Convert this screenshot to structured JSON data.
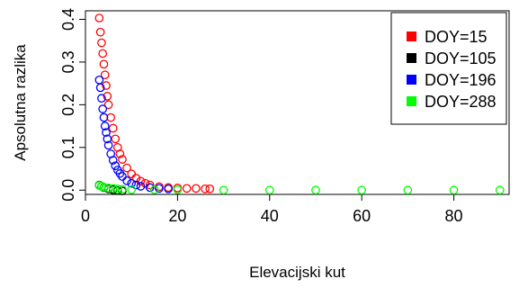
{
  "chart_data": {
    "type": "scatter",
    "title": "",
    "xlabel": "Elevacijski kut",
    "ylabel": "Apsolutna razlika",
    "xlim": [
      0,
      92
    ],
    "ylim": [
      -0.01,
      0.42
    ],
    "x_ticks": [
      0,
      20,
      40,
      60,
      80
    ],
    "x_tick_labels": [
      "0",
      "20",
      "40",
      "60",
      "80"
    ],
    "y_ticks": [
      0.0,
      0.1,
      0.2,
      0.3,
      0.4
    ],
    "y_tick_labels": [
      "0.0",
      "0.1",
      "0.2",
      "0.3",
      "0.4"
    ],
    "marker": "open-circle",
    "legend": {
      "placement": "top-right",
      "marker": "filled-square"
    },
    "series": [
      {
        "name": "DOY=15",
        "color": "#ff0000",
        "x": [
          3.0,
          3.25,
          3.5,
          3.75,
          4.0,
          4.25,
          4.5,
          4.75,
          5.0,
          5.5,
          6.0,
          6.5,
          7.0,
          7.5,
          8.0,
          9.0,
          10.0,
          11.0,
          12.0,
          13.0,
          14.0,
          16.0,
          18.0,
          20.0,
          22.0,
          24.0,
          26.0,
          27.0
        ],
        "y": [
          0.403,
          0.37,
          0.345,
          0.32,
          0.295,
          0.27,
          0.245,
          0.22,
          0.2,
          0.17,
          0.145,
          0.12,
          0.1,
          0.085,
          0.072,
          0.052,
          0.038,
          0.028,
          0.021,
          0.016,
          0.012,
          0.008,
          0.006,
          0.005,
          0.004,
          0.004,
          0.003,
          0.003
        ]
      },
      {
        "name": "DOY=105",
        "color": "#000000",
        "x": [
          3.0,
          3.5,
          4.0,
          5.0,
          6.0,
          7.0,
          8.0
        ],
        "y": [
          0.012,
          0.009,
          0.006,
          0.003,
          0.001,
          -0.001,
          -0.002
        ]
      },
      {
        "name": "DOY=196",
        "color": "#0000ff",
        "x": [
          3.0,
          3.25,
          3.5,
          3.75,
          4.0,
          4.25,
          4.5,
          4.75,
          5.0,
          5.5,
          6.0,
          6.5,
          7.0,
          7.5,
          8.0,
          9.0,
          10.0,
          11.0,
          12.0,
          14.0,
          16.0,
          18.0
        ],
        "y": [
          0.258,
          0.24,
          0.215,
          0.19,
          0.17,
          0.15,
          0.135,
          0.12,
          0.105,
          0.085,
          0.07,
          0.057,
          0.047,
          0.039,
          0.032,
          0.022,
          0.016,
          0.012,
          0.009,
          0.006,
          0.004,
          0.003
        ]
      },
      {
        "name": "DOY=288",
        "color": "#00ff00",
        "x": [
          3.0,
          3.5,
          4.0,
          5.0,
          6.0,
          7.0,
          8.0,
          10.0,
          15.0,
          20.0,
          30.0,
          40.0,
          50.0,
          60.0,
          70.0,
          80.0,
          90.0
        ],
        "y": [
          0.011,
          0.009,
          0.007,
          0.005,
          0.004,
          0.003,
          0.002,
          0.001,
          0.001,
          0.001,
          0.0,
          0.0,
          0.0,
          0.0,
          0.0,
          0.0,
          0.0
        ]
      }
    ]
  }
}
